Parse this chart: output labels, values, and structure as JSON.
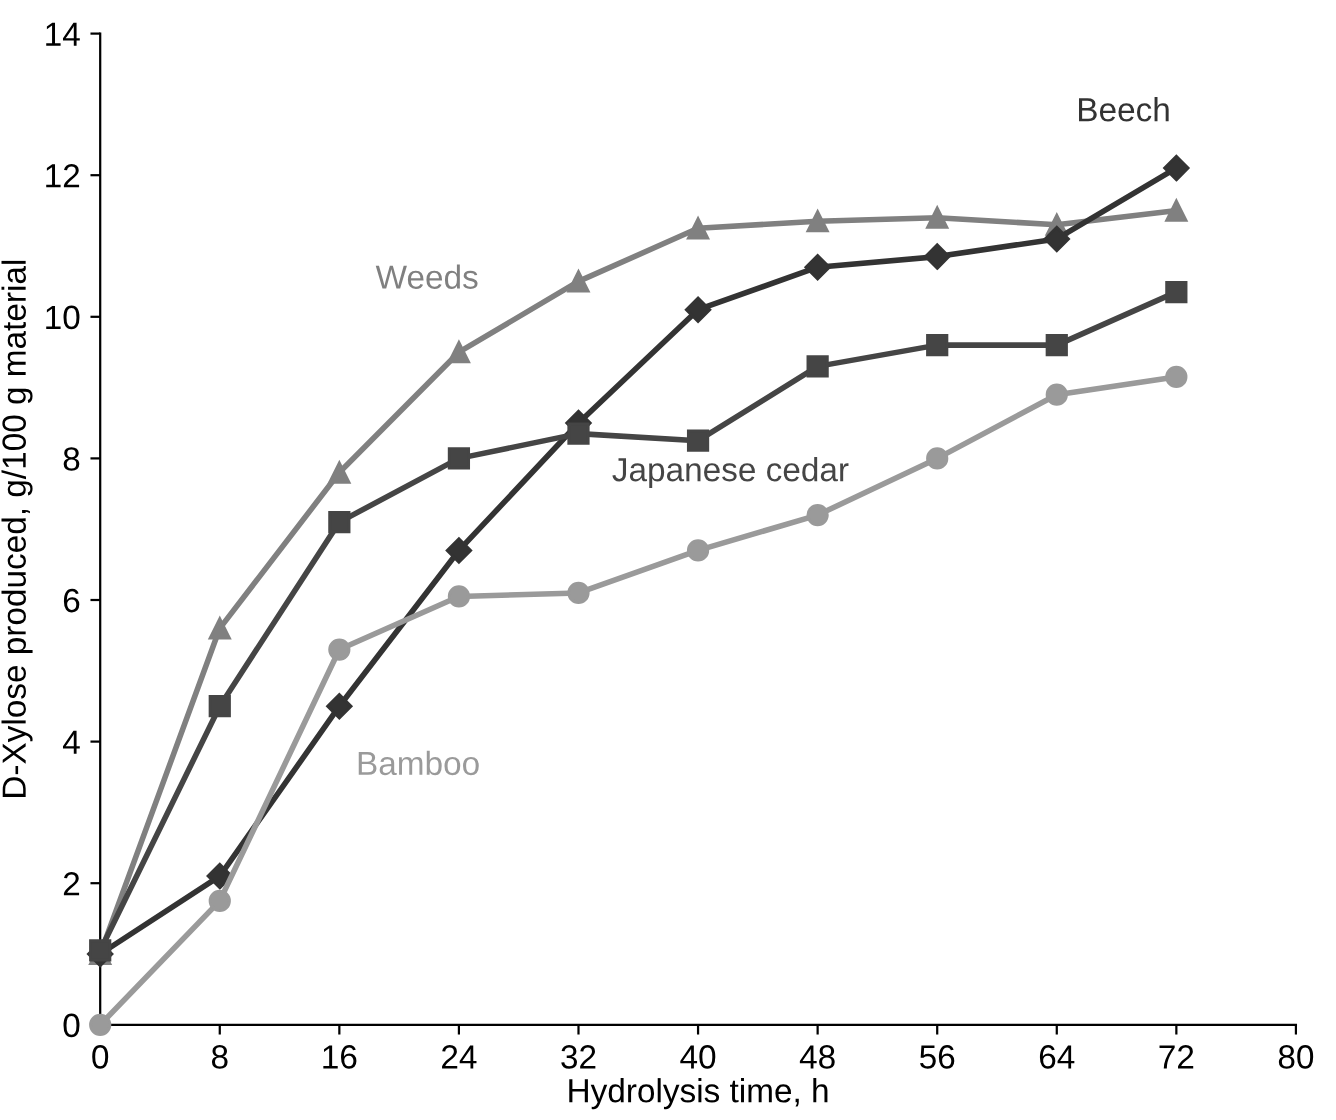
{
  "chart_data": {
    "type": "line",
    "xlabel": "Hydrolysis time, h",
    "ylabel": "D-Xylose produced, g/100 g material",
    "x": [
      0,
      8,
      16,
      24,
      32,
      40,
      48,
      56,
      64,
      72
    ],
    "xlim": [
      0,
      80
    ],
    "xticks": [
      0,
      8,
      16,
      24,
      32,
      40,
      48,
      56,
      64,
      72,
      80
    ],
    "ylim": [
      0,
      14
    ],
    "yticks": [
      0,
      2,
      4,
      6,
      8,
      10,
      12,
      14
    ],
    "grid": false,
    "legend": false,
    "line_style": "solid",
    "series": [
      {
        "name": "Weeds",
        "color": "#808080",
        "marker": "triangle",
        "values": [
          1.0,
          5.6,
          7.8,
          9.5,
          10.5,
          11.25,
          11.35,
          11.4,
          11.3,
          11.5
        ]
      },
      {
        "name": "Beech",
        "color": "#333333",
        "marker": "diamond",
        "values": [
          1.0,
          2.1,
          4.5,
          6.7,
          8.5,
          10.1,
          10.7,
          10.85,
          11.1,
          12.1
        ]
      },
      {
        "name": "Japanese cedar",
        "color": "#454545",
        "marker": "square",
        "values": [
          1.05,
          4.5,
          7.1,
          8.0,
          8.35,
          8.25,
          9.3,
          9.6,
          9.6,
          10.35
        ]
      },
      {
        "name": "Bamboo",
        "color": "#9a9a9a",
        "marker": "circle",
        "values": [
          0,
          1.75,
          5.3,
          6.05,
          6.1,
          6.7,
          7.2,
          8.0,
          8.9,
          9.15
        ]
      }
    ]
  }
}
